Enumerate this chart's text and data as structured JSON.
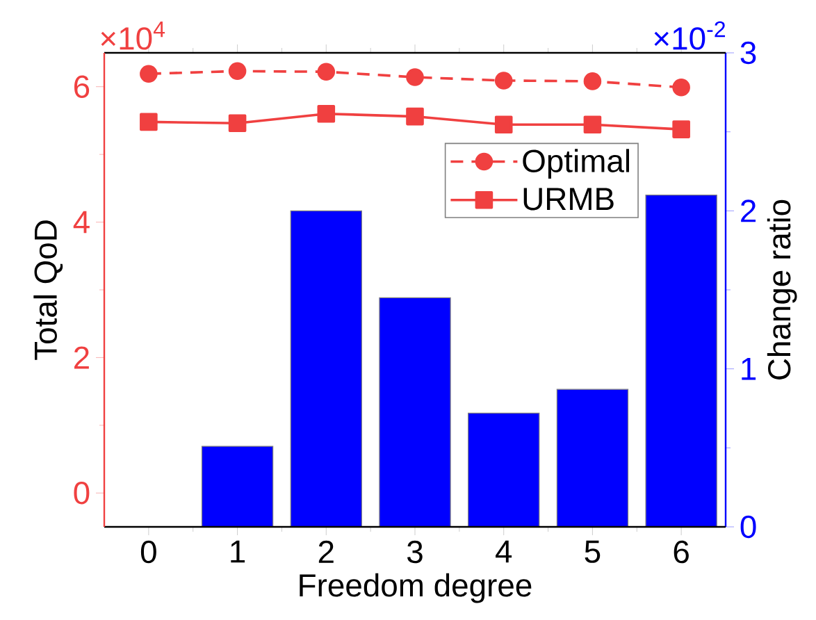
{
  "chart_data": {
    "type": "line",
    "xlabel": "Freedom degree",
    "ylabel": "Total QoD",
    "y2label": "Change ratio",
    "categories": [
      "0",
      "1",
      "2",
      "3",
      "4",
      "5",
      "6"
    ],
    "ylim": [
      -0.5,
      6.5
    ],
    "yticks": [
      0,
      2,
      4,
      6
    ],
    "y2lim": [
      0,
      3
    ],
    "y2ticks": [
      0,
      1,
      2,
      3
    ],
    "annotations": [
      "×10$^{4}$",
      "×10$^{-2}$"
    ],
    "legend": "top right",
    "series": [
      {
        "name": "Optimal",
        "color": "#f04040",
        "marker": "circle",
        "line_style": "dashed",
        "values": [
          6.19,
          6.23,
          6.22,
          6.14,
          6.09,
          6.08,
          5.99
        ]
      },
      {
        "name": "URMB",
        "color": "#f04040",
        "marker": "square",
        "line_style": "solid",
        "values": [
          5.48,
          5.46,
          5.6,
          5.56,
          5.44,
          5.44,
          5.37
        ]
      },
      {
        "type": "bar",
        "axis": "y2",
        "color": "#0000ff",
        "values": [
          0,
          0.51,
          2.0,
          1.45,
          0.72,
          0.87,
          2.1
        ]
      }
    ]
  }
}
